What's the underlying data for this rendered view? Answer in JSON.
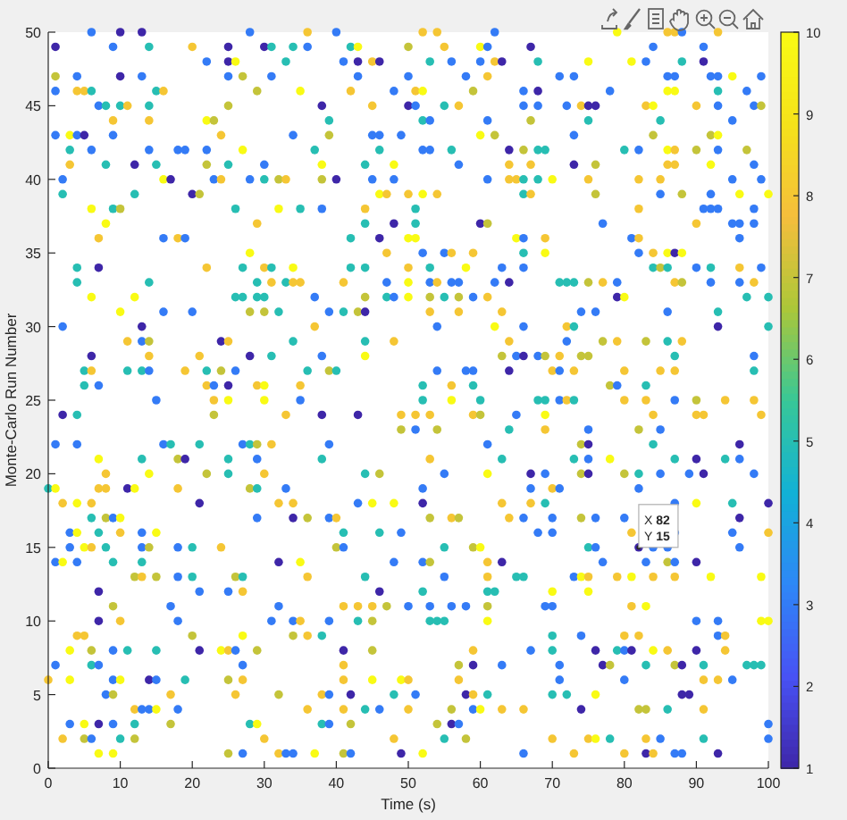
{
  "chart_data": {
    "type": "scatter",
    "xlabel": "Time (s)",
    "ylabel": "Monte-Carlo Run Number",
    "xlim": [
      0,
      100
    ],
    "ylim": [
      0,
      50
    ],
    "xticks": [
      0,
      10,
      20,
      30,
      40,
      50,
      60,
      70,
      80,
      90,
      100
    ],
    "yticks": [
      0,
      5,
      10,
      15,
      20,
      25,
      30,
      35,
      40,
      45,
      50
    ],
    "clim": [
      1,
      10
    ],
    "cticks": [
      1,
      2,
      3,
      4,
      5,
      6,
      7,
      8,
      9,
      10
    ],
    "marker": "circle",
    "annotations": [
      {
        "text": "X 82\nY 15",
        "x": 82,
        "y": 15
      }
    ],
    "x": [
      6,
      10,
      13,
      28,
      36,
      40,
      52,
      54,
      62,
      79,
      86,
      87,
      88,
      93,
      1,
      9,
      14,
      20,
      25,
      30,
      31,
      34,
      36,
      42,
      43,
      50,
      55,
      60,
      61,
      67,
      84,
      91,
      22,
      25,
      26,
      33,
      41,
      43,
      45,
      46,
      53,
      56,
      60,
      62,
      63,
      68,
      75,
      81,
      83,
      88,
      91,
      1,
      4,
      10,
      13,
      25,
      27,
      31,
      43,
      50,
      58,
      61,
      71,
      73,
      86,
      87,
      92,
      93,
      95,
      99,
      1,
      4,
      5,
      6,
      15,
      16,
      29,
      35,
      42,
      48,
      51,
      52,
      59,
      66,
      68,
      78,
      86,
      87,
      93,
      97,
      7,
      8,
      10,
      11,
      14,
      25,
      38,
      45,
      50,
      51,
      55,
      57,
      66,
      68,
      72,
      74,
      75,
      76,
      83,
      84,
      90,
      93,
      98,
      99,
      9,
      14,
      22,
      23,
      39,
      52,
      53,
      61,
      67,
      75,
      85,
      95,
      1,
      3,
      4,
      5,
      9,
      24,
      34,
      39,
      45,
      46,
      49,
      60,
      62,
      73,
      84,
      92,
      93,
      3,
      6,
      14,
      18,
      19,
      22,
      27,
      37,
      46,
      52,
      53,
      56,
      64,
      66,
      68,
      69,
      80,
      82,
      86,
      87,
      90,
      93,
      97,
      3,
      8,
      12,
      15,
      22,
      25,
      30,
      38,
      44,
      48,
      57,
      64,
      67,
      73,
      76,
      86,
      87,
      92,
      98,
      2,
      16,
      17,
      23,
      24,
      28,
      30,
      32,
      33,
      38,
      40,
      45,
      48,
      61,
      64,
      65,
      66,
      68,
      70,
      75,
      82,
      85,
      95,
      99,
      2,
      12,
      20,
      21,
      46,
      47,
      50,
      52,
      54,
      66,
      67,
      76,
      85,
      88,
      92,
      96,
      100,
      6,
      9,
      10,
      26,
      32,
      35,
      38,
      44,
      51,
      82,
      91,
      92,
      93,
      98,
      8,
      29,
      44,
      48,
      51,
      60,
      61,
      77,
      90,
      95,
      96,
      98,
      7,
      16,
      18,
      19,
      42,
      46,
      50,
      51,
      65,
      66,
      69,
      81,
      82,
      96,
      28,
      47,
      52,
      55,
      56,
      59,
      66,
      69,
      82,
      84,
      86,
      87,
      88,
      4,
      7,
      22,
      27,
      30,
      31,
      34,
      42,
      44,
      50,
      53,
      58,
      63,
      66,
      84,
      85,
      86,
      90,
      92,
      96,
      99,
      4,
      14,
      29,
      31,
      33,
      34,
      35,
      41,
      47,
      50,
      53,
      54,
      56,
      57,
      62,
      64,
      71,
      72,
      73,
      75,
      77,
      79,
      87,
      88,
      92,
      96,
      98,
      6,
      12,
      26,
      27,
      29,
      30,
      37,
      44,
      47,
      48,
      50,
      53,
      55,
      57,
      59,
      61,
      79,
      80,
      97,
      100,
      10,
      16,
      20,
      28,
      30,
      32,
      39,
      41,
      43,
      44,
      53,
      57,
      63,
      74,
      76,
      86,
      93,
      2,
      13,
      37,
      54,
      62,
      66,
      72,
      73,
      93,
      100,
      11,
      13,
      14,
      24,
      25,
      34,
      44,
      48,
      64,
      72,
      77,
      79,
      83,
      86,
      88,
      6,
      14,
      21,
      28,
      31,
      38,
      44,
      63,
      65,
      66,
      68,
      69,
      71,
      74,
      75,
      87,
      98,
      5,
      6,
      11,
      13,
      14,
      19,
      22,
      24,
      26,
      36,
      39,
      40,
      54,
      58,
      59,
      64,
      70,
      71,
      73,
      80,
      85,
      87,
      98,
      5,
      7,
      22,
      23,
      25,
      29,
      30,
      35,
      52,
      56,
      59,
      78,
      79,
      83,
      15,
      23,
      25,
      30,
      35,
      52,
      56,
      60,
      68,
      69,
      71,
      72,
      73,
      80,
      83,
      87,
      90,
      94,
      98,
      2,
      4,
      23,
      33,
      38,
      43,
      49,
      51,
      53,
      59,
      60,
      65,
      69,
      84,
      90,
      91,
      99,
      49,
      51,
      54,
      64,
      69,
      75,
      82,
      85,
      1,
      4,
      16,
      17,
      21,
      27,
      28,
      29,
      31,
      39,
      61,
      74,
      75,
      84,
      96,
      7,
      13,
      18,
      19,
      25,
      29,
      38,
      53,
      63,
      73,
      75,
      78,
      87,
      90,
      94,
      96,
      8,
      14,
      22,
      25,
      30,
      44,
      46,
      55,
      61,
      67,
      69,
      74,
      75,
      80,
      82,
      85,
      89,
      91,
      98,
      0,
      1,
      7,
      8,
      11,
      12,
      18,
      28,
      29,
      33,
      52,
      67,
      70,
      71,
      82,
      2,
      4,
      6,
      21,
      32,
      34,
      43,
      45,
      48,
      52,
      63,
      67,
      69,
      87,
      90,
      95,
      100,
      6,
      8,
      9,
      10,
      29,
      34,
      36,
      39,
      40,
      53,
      56,
      57,
      64,
      66,
      70,
      74,
      76,
      80,
      96,
      3,
      4,
      7,
      10,
      13,
      15,
      41,
      46,
      49,
      68,
      70,
      81,
      86,
      87,
      95,
      100,
      3,
      5,
      6,
      8,
      13,
      14,
      18,
      20,
      24,
      40,
      41,
      55,
      59,
      60,
      75,
      76,
      82,
      84,
      86,
      96,
      1,
      2,
      4,
      9,
      13,
      32,
      35,
      48,
      52,
      53,
      61,
      63,
      77,
      83,
      86,
      87,
      90,
      12,
      13,
      15,
      18,
      20,
      26,
      27,
      36,
      44,
      55,
      61,
      65,
      66,
      73,
      74,
      75,
      79,
      81,
      84,
      87,
      92,
      99,
      7,
      21,
      25,
      27,
      46,
      52,
      61,
      62,
      70,
      75,
      9,
      17,
      32,
      41,
      43,
      45,
      47,
      50,
      53,
      56,
      58,
      61,
      69,
      70,
      81,
      83,
      7,
      10,
      18,
      31,
      34,
      35,
      39,
      43,
      45,
      53,
      54,
      55,
      61,
      90,
      93,
      99,
      100,
      4,
      5,
      20,
      27,
      34,
      36,
      38,
      70,
      74,
      80,
      82,
      93,
      94,
      3,
      6,
      9,
      11,
      15,
      21,
      24,
      25,
      26,
      29,
      41,
      45,
      59,
      67,
      70,
      76,
      79,
      80,
      81,
      84,
      86,
      90,
      94,
      1,
      6,
      7,
      27,
      41,
      57,
      59,
      63,
      71,
      77,
      78,
      83,
      87,
      88,
      91,
      97,
      98,
      99,
      0,
      3,
      9,
      10,
      14,
      15,
      19,
      25,
      27,
      41,
      45,
      49,
      50,
      57,
      71,
      80,
      91,
      93,
      95,
      8,
      9,
      17,
      26,
      32,
      38,
      39,
      42,
      48,
      51,
      58,
      59,
      61,
      70,
      72,
      76,
      88,
      89,
      12,
      13,
      14,
      15,
      18,
      36,
      41,
      44,
      46,
      50,
      56,
      59,
      60,
      63,
      66,
      74,
      82,
      83,
      86,
      91,
      3,
      5,
      7,
      9,
      12,
      17,
      28,
      29,
      38,
      39,
      42,
      54,
      56,
      57,
      100,
      2,
      5,
      6,
      10,
      12,
      30,
      48,
      55,
      58,
      70,
      75,
      76,
      78,
      83,
      85,
      91,
      100,
      7,
      9,
      25,
      27,
      32,
      33,
      34,
      37,
      41,
      42,
      49,
      52,
      66,
      73,
      80,
      83,
      84,
      87,
      88,
      93
    ],
    "values": [
      50,
      50,
      50,
      50,
      50,
      50,
      50,
      50,
      50,
      50,
      50,
      50,
      50,
      50,
      49,
      49,
      49,
      49,
      49,
      49,
      49,
      49,
      49,
      49,
      49,
      49,
      49,
      49,
      49,
      49,
      49,
      49,
      48,
      48,
      48,
      48,
      48,
      48,
      48,
      48,
      48,
      48,
      48,
      48,
      48,
      48,
      48,
      48,
      48,
      48,
      48,
      47,
      47,
      47,
      47,
      47,
      47,
      47,
      47,
      47,
      47,
      47,
      47,
      47,
      47,
      47,
      47,
      47,
      47,
      47,
      46,
      46,
      46,
      46,
      46,
      46,
      46,
      46,
      46,
      46,
      46,
      46,
      46,
      46,
      46,
      46,
      46,
      46,
      46,
      46,
      45,
      45,
      45,
      45,
      45,
      45,
      45,
      45,
      45,
      45,
      45,
      45,
      45,
      45,
      45,
      45,
      45,
      45,
      45,
      45,
      45,
      45,
      45,
      45,
      44,
      44,
      44,
      44,
      44,
      44,
      44,
      44,
      44,
      44,
      44,
      44,
      43,
      43,
      43,
      43,
      43,
      43,
      43,
      43,
      43,
      43,
      43,
      43,
      43,
      43,
      43,
      43,
      43,
      42,
      42,
      42,
      42,
      42,
      42,
      42,
      42,
      42,
      42,
      42,
      42,
      42,
      42,
      42,
      42,
      42,
      42,
      42,
      42,
      42,
      42,
      42,
      41,
      41,
      41,
      41,
      41,
      41,
      41,
      41,
      41,
      41,
      41,
      41,
      41,
      41,
      41,
      41,
      41,
      41,
      41,
      40,
      40,
      40,
      40,
      40,
      40,
      40,
      40,
      40,
      40,
      40,
      40,
      40,
      40,
      40,
      40,
      40,
      40,
      40,
      40,
      40,
      40,
      40,
      40,
      39,
      39,
      39,
      39,
      39,
      39,
      39,
      39,
      39,
      39,
      39,
      39,
      39,
      39,
      39,
      39,
      39,
      38,
      38,
      38,
      38,
      38,
      38,
      38,
      38,
      38,
      38,
      38,
      38,
      38,
      38,
      37,
      37,
      37,
      37,
      37,
      37,
      37,
      37,
      37,
      37,
      37,
      37,
      36,
      36,
      36,
      36,
      36,
      36,
      36,
      36,
      36,
      36,
      36,
      36,
      36,
      36,
      35,
      35,
      35,
      35,
      35,
      35,
      35,
      35,
      35,
      35,
      35,
      35,
      35,
      34,
      34,
      34,
      34,
      34,
      34,
      34,
      34,
      34,
      34,
      34,
      34,
      34,
      34,
      34,
      34,
      34,
      34,
      34,
      34,
      34,
      33,
      33,
      33,
      33,
      33,
      33,
      33,
      33,
      33,
      33,
      33,
      33,
      33,
      33,
      33,
      33,
      33,
      33,
      33,
      33,
      33,
      33,
      33,
      33,
      33,
      33,
      33,
      32,
      32,
      32,
      32,
      32,
      32,
      32,
      32,
      32,
      32,
      32,
      32,
      32,
      32,
      32,
      32,
      32,
      32,
      32,
      32,
      31,
      31,
      31,
      31,
      31,
      31,
      31,
      31,
      31,
      31,
      31,
      31,
      31,
      31,
      31,
      31,
      31,
      30,
      30,
      30,
      30,
      30,
      30,
      30,
      30,
      30,
      30,
      29,
      29,
      29,
      29,
      29,
      29,
      29,
      29,
      29,
      29,
      29,
      29,
      29,
      29,
      29,
      28,
      28,
      28,
      28,
      28,
      28,
      28,
      28,
      28,
      28,
      28,
      28,
      28,
      28,
      28,
      28,
      28,
      27,
      27,
      27,
      27,
      27,
      27,
      27,
      27,
      27,
      27,
      27,
      27,
      27,
      27,
      27,
      27,
      27,
      27,
      27,
      27,
      27,
      27,
      27,
      26,
      26,
      26,
      26,
      26,
      26,
      26,
      26,
      26,
      26,
      26,
      26,
      26,
      26,
      25,
      25,
      25,
      25,
      25,
      25,
      25,
      25,
      25,
      25,
      25,
      25,
      25,
      25,
      25,
      25,
      25,
      25,
      25,
      24,
      24,
      24,
      24,
      24,
      24,
      24,
      24,
      24,
      24,
      24,
      24,
      24,
      24,
      24,
      24,
      24,
      23,
      23,
      23,
      23,
      23,
      23,
      23,
      23,
      22,
      22,
      22,
      22,
      22,
      22,
      22,
      22,
      22,
      22,
      22,
      22,
      22,
      22,
      22,
      21,
      21,
      21,
      21,
      21,
      21,
      21,
      21,
      21,
      21,
      21,
      21,
      21,
      21,
      21,
      21,
      20,
      20,
      20,
      20,
      20,
      20,
      20,
      20,
      20,
      20,
      20,
      20,
      20,
      20,
      20,
      20,
      20,
      20,
      20,
      19,
      19,
      19,
      19,
      19,
      19,
      19,
      19,
      19,
      19,
      19,
      19,
      19,
      19,
      19,
      18,
      18,
      18,
      18,
      18,
      18,
      18,
      18,
      18,
      18,
      18,
      18,
      18,
      18,
      18,
      18,
      18,
      17,
      17,
      17,
      17,
      17,
      17,
      17,
      17,
      17,
      17,
      17,
      17,
      17,
      17,
      17,
      17,
      17,
      17,
      17,
      16,
      16,
      16,
      16,
      16,
      16,
      16,
      16,
      16,
      16,
      16,
      16,
      null,
      16,
      16,
      16,
      15,
      15,
      15,
      15,
      15,
      15,
      15,
      15,
      15,
      15,
      15,
      15,
      15,
      15,
      15,
      15,
      15,
      15,
      15,
      15,
      14,
      14,
      14,
      14,
      14,
      14,
      14,
      14,
      14,
      14,
      14,
      14,
      14,
      14,
      14,
      14,
      14,
      13,
      13,
      13,
      13,
      13,
      13,
      13,
      13,
      13,
      13,
      13,
      13,
      13,
      13,
      13,
      13,
      13,
      13,
      13,
      13,
      13,
      13,
      12,
      12,
      12,
      12,
      12,
      12,
      12,
      12,
      12,
      12,
      11,
      11,
      11,
      11,
      11,
      11,
      11,
      11,
      11,
      11,
      11,
      11,
      11,
      11,
      11,
      11,
      10,
      10,
      10,
      10,
      10,
      10,
      10,
      10,
      10,
      10,
      10,
      10,
      10,
      10,
      10,
      10,
      10,
      9,
      9,
      9,
      9,
      9,
      9,
      9,
      9,
      9,
      9,
      9,
      9,
      9,
      8,
      8,
      8,
      8,
      8,
      8,
      8,
      8,
      8,
      8,
      8,
      8,
      8,
      8,
      8,
      8,
      8,
      8,
      8,
      8,
      8,
      8,
      8,
      7,
      7,
      7,
      7,
      7,
      7,
      7,
      7,
      7,
      7,
      7,
      7,
      7,
      7,
      7,
      7,
      7,
      7,
      6,
      6,
      6,
      6,
      6,
      6,
      6,
      6,
      6,
      6,
      6,
      6,
      6,
      6,
      6,
      6,
      6,
      6,
      6,
      5,
      5,
      5,
      5,
      5,
      5,
      5,
      5,
      5,
      5,
      5,
      5,
      5,
      5,
      5,
      5,
      5,
      5,
      4,
      4,
      4,
      4,
      4,
      4,
      4,
      4,
      4,
      4,
      4,
      4,
      4,
      4,
      4,
      4,
      4,
      4,
      4,
      4,
      3,
      3,
      3,
      3,
      3,
      3,
      3,
      3,
      3,
      3,
      3,
      3,
      3,
      3,
      3,
      2,
      2,
      2,
      2,
      2,
      2,
      2,
      2,
      2,
      2,
      2,
      2,
      2,
      2,
      2,
      2,
      2,
      1,
      1,
      1,
      1,
      1,
      1,
      1,
      1,
      1,
      1,
      1,
      1,
      1,
      1,
      1,
      1,
      1,
      1,
      1,
      1
    ],
    "cvalues": [
      3,
      1,
      1,
      3,
      8,
      3,
      8,
      8,
      3,
      10,
      8,
      8,
      3,
      8,
      1,
      3,
      5,
      8,
      1,
      1,
      5,
      5,
      3,
      5,
      10,
      7,
      8,
      10,
      3,
      1,
      3,
      3,
      3,
      1,
      10,
      5,
      3,
      1,
      8,
      1,
      5,
      3,
      3,
      8,
      1,
      5,
      10,
      10,
      3,
      5,
      1,
      7,
      3,
      1,
      3,
      3,
      7,
      3,
      3,
      3,
      3,
      8,
      3,
      3,
      3,
      3,
      3,
      3,
      10,
      3,
      3,
      8,
      8,
      5,
      5,
      8,
      7,
      10,
      8,
      3,
      8,
      10,
      7,
      3,
      1,
      3,
      10,
      10,
      5,
      3,
      3,
      5,
      5,
      8,
      5,
      7,
      1,
      8,
      1,
      3,
      5,
      8,
      3,
      3,
      3,
      8,
      1,
      1,
      8,
      10,
      8,
      3,
      3,
      7,
      8,
      8,
      10,
      7,
      5,
      5,
      3,
      3,
      7,
      5,
      5,
      3,
      3,
      10,
      3,
      1,
      3,
      8,
      3,
      7,
      3,
      3,
      3,
      10,
      7,
      3,
      7,
      7,
      10,
      5,
      3,
      3,
      3,
      3,
      3,
      10,
      5,
      5,
      3,
      3,
      5,
      1,
      7,
      5,
      5,
      5,
      3,
      10,
      8,
      7,
      3,
      7,
      8,
      5,
      1,
      5,
      7,
      5,
      3,
      10,
      5,
      10,
      3,
      8,
      8,
      1,
      7,
      8,
      8,
      10,
      3,
      3,
      10,
      1,
      3,
      8,
      3,
      5,
      7,
      8,
      7,
      1,
      3,
      3,
      3,
      8,
      8,
      5,
      5,
      10,
      8,
      8,
      8,
      3,
      3,
      5,
      5,
      1,
      7,
      10,
      8,
      8,
      10,
      8,
      5,
      8,
      7,
      3,
      7,
      3,
      10,
      10,
      10,
      5,
      7,
      5,
      10,
      5,
      3,
      8,
      5,
      8,
      3,
      3,
      3,
      3,
      10,
      8,
      5,
      1,
      5,
      1,
      7,
      3,
      8,
      3,
      3,
      3,
      8,
      3,
      8,
      3,
      5,
      1,
      10,
      10,
      10,
      3,
      8,
      3,
      8,
      3,
      10,
      8,
      3,
      3,
      8,
      8,
      5,
      10,
      3,
      8,
      10,
      1,
      10,
      5,
      1,
      8,
      5,
      8,
      5,
      10,
      5,
      5,
      8,
      5,
      10,
      3,
      3,
      5,
      7,
      5,
      3,
      5,
      8,
      3,
      5,
      5,
      5,
      8,
      5,
      8,
      8,
      8,
      3,
      10,
      3,
      8,
      3,
      3,
      3,
      1,
      5,
      5,
      5,
      7,
      8,
      3,
      8,
      7,
      3,
      3,
      8,
      10,
      10,
      5,
      5,
      5,
      5,
      3,
      7,
      5,
      3,
      10,
      7,
      5,
      7,
      3,
      8,
      1,
      10,
      5,
      5,
      10,
      3,
      3,
      7,
      7,
      5,
      3,
      5,
      7,
      1,
      8,
      8,
      8,
      3,
      3,
      3,
      5,
      3,
      1,
      8,
      3,
      10,
      3,
      8,
      5,
      1,
      5,
      8,
      3,
      7,
      1,
      8,
      5,
      5,
      8,
      8,
      3,
      7,
      8,
      7,
      5,
      8,
      1,
      8,
      8,
      1,
      5,
      3,
      10,
      7,
      3,
      1,
      3,
      7,
      8,
      7,
      7,
      5,
      3,
      5,
      8,
      5,
      5,
      3,
      8,
      5,
      7,
      3,
      5,
      7,
      5,
      3,
      3,
      3,
      1,
      8,
      3,
      8,
      8,
      8,
      8,
      5,
      5,
      3,
      8,
      3,
      1,
      8,
      10,
      8,
      5,
      8,
      5,
      7,
      3,
      5,
      3,
      8,
      10,
      10,
      3,
      5,
      10,
      5,
      5,
      5,
      3,
      8,
      5,
      8,
      8,
      3,
      7,
      8,
      8,
      1,
      5,
      7,
      8,
      1,
      1,
      8,
      8,
      8,
      8,
      7,
      3,
      10,
      8,
      8,
      8,
      8,
      7,
      3,
      7,
      5,
      8,
      3,
      7,
      3,
      3,
      3,
      3,
      5,
      5,
      3,
      5,
      7,
      8,
      3,
      3,
      7,
      1,
      5,
      1,
      10,
      5,
      7,
      1,
      5,
      3,
      5,
      8,
      5,
      5,
      3,
      10,
      5,
      1,
      5,
      3,
      8,
      10,
      7,
      5,
      8,
      5,
      7,
      3,
      10,
      1,
      3,
      7,
      1,
      7,
      5,
      3,
      3,
      1,
      3,
      5,
      10,
      8,
      8,
      1,
      10,
      8,
      7,
      5,
      3,
      3,
      3,
      8,
      3,
      3,
      8,
      10,
      8,
      1,
      8,
      8,
      3,
      10,
      10,
      1,
      8,
      8,
      5,
      3,
      10,
      5,
      1,
      5,
      7,
      3,
      10,
      3,
      1,
      7,
      3,
      8,
      7,
      8,
      7,
      8,
      3,
      3,
      7,
      3,
      3,
      1,
      3,
      10,
      5,
      8,
      3,
      10,
      5,
      5,
      3,
      3,
      3,
      8,
      null,
      3,
      3,
      8,
      3,
      10,
      8,
      5,
      3,
      7,
      3,
      5,
      8,
      7,
      3,
      5,
      7,
      10,
      5,
      3,
      1,
      3,
      3,
      3,
      3,
      10,
      3,
      5,
      5,
      1,
      10,
      3,
      3,
      7,
      8,
      1,
      3,
      3,
      7,
      3,
      1,
      7,
      8,
      7,
      3,
      5,
      7,
      5,
      8,
      5,
      3,
      8,
      5,
      5,
      3,
      10,
      8,
      8,
      10,
      8,
      8,
      10,
      10,
      1,
      3,
      3,
      8,
      1,
      5,
      5,
      5,
      10,
      10,
      7,
      3,
      3,
      8,
      8,
      8,
      7,
      3,
      3,
      3,
      3,
      7,
      3,
      3,
      8,
      10,
      1,
      8,
      3,
      3,
      3,
      8,
      3,
      5,
      7,
      5,
      5,
      5,
      10,
      3,
      3,
      10,
      10,
      8,
      8,
      7,
      10,
      7,
      8,
      5,
      5,
      3,
      8,
      8,
      3,
      8,
      10,
      7,
      3,
      5,
      5,
      1,
      10,
      8,
      3,
      7,
      1,
      7,
      8,
      3,
      5,
      1,
      5,
      3,
      1,
      10,
      8,
      1,
      8,
      3,
      5,
      3,
      3,
      8,
      7,
      1,
      3,
      3,
      1,
      7,
      5,
      7,
      1,
      5,
      5,
      5,
      5,
      8,
      10,
      3,
      10,
      1,
      3,
      5,
      7,
      8,
      8,
      10,
      10,
      8,
      8,
      3,
      3,
      8,
      8,
      3,
      3,
      7,
      8,
      8,
      7,
      8,
      3,
      1,
      5,
      3,
      1,
      8,
      5,
      5,
      5,
      10,
      1,
      1,
      8,
      3,
      3,
      10,
      3,
      8,
      8,
      5,
      3,
      8,
      7,
      3,
      10,
      8,
      8,
      1,
      7,
      7,
      5,
      8,
      3,
      10,
      1,
      3,
      5,
      7,
      5,
      10,
      5,
      3,
      7,
      7,
      1,
      3,
      3,
      8,
      7,
      3,
      5,
      7,
      8,
      8,
      5,
      7,
      8,
      8,
      10,
      5,
      8,
      3,
      5,
      3,
      10,
      10,
      7,
      3,
      8,
      3,
      3,
      10,
      7,
      3,
      1,
      10,
      3,
      8,
      8,
      1,
      8,
      3,
      3,
      1
    ]
  }
}
